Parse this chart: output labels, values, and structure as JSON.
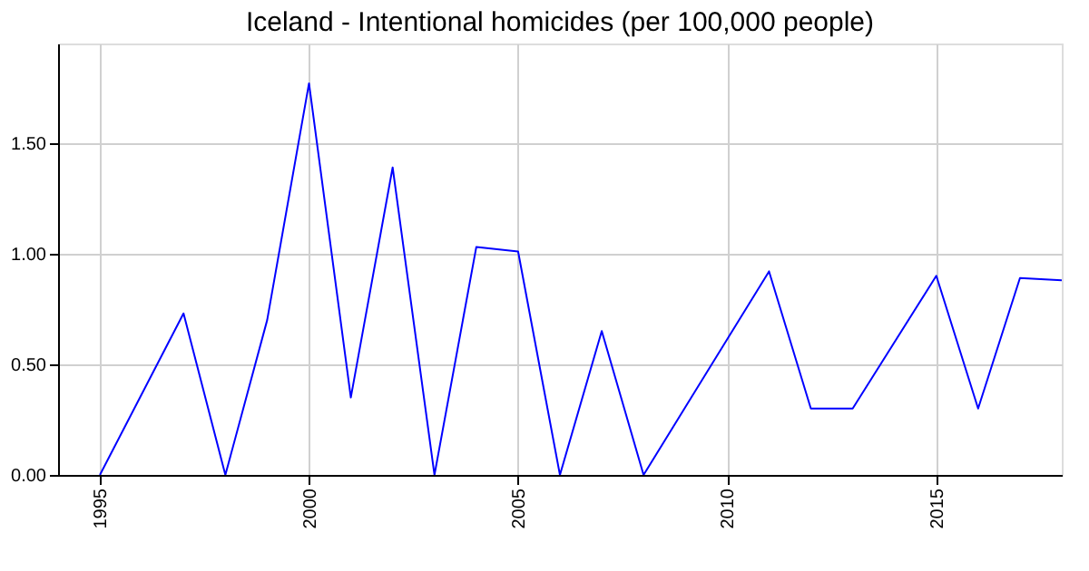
{
  "chart_data": {
    "type": "line",
    "title": "Iceland - Intentional homicides (per 100,000 people)",
    "x": [
      1995,
      1997,
      1998,
      1999,
      2000,
      2001,
      2002,
      2003,
      2004,
      2005,
      2006,
      2007,
      2008,
      2011,
      2012,
      2013,
      2015,
      2016,
      2017,
      2018
    ],
    "series": [
      {
        "color": "#0000ff",
        "values": [
          0,
          0.73,
          0,
          0.7,
          1.77,
          0.35,
          1.39,
          0,
          1.03,
          1.01,
          0,
          0.65,
          0,
          0.92,
          0.3,
          0.3,
          0.9,
          0.3,
          0.89,
          0.88
        ]
      }
    ],
    "xlim": [
      1994,
      2018
    ],
    "xticks": [
      1995,
      2000,
      2005,
      2010,
      2015
    ],
    "ylim": [
      0,
      1.95
    ],
    "yticks": [
      {
        "value": 0,
        "label": "0.00"
      },
      {
        "value": 0.5,
        "label": "0.50"
      },
      {
        "value": 1,
        "label": "1.00"
      },
      {
        "value": 1.5,
        "label": "1.50"
      }
    ],
    "grid": true,
    "marker": "none",
    "line_style": "solid"
  }
}
